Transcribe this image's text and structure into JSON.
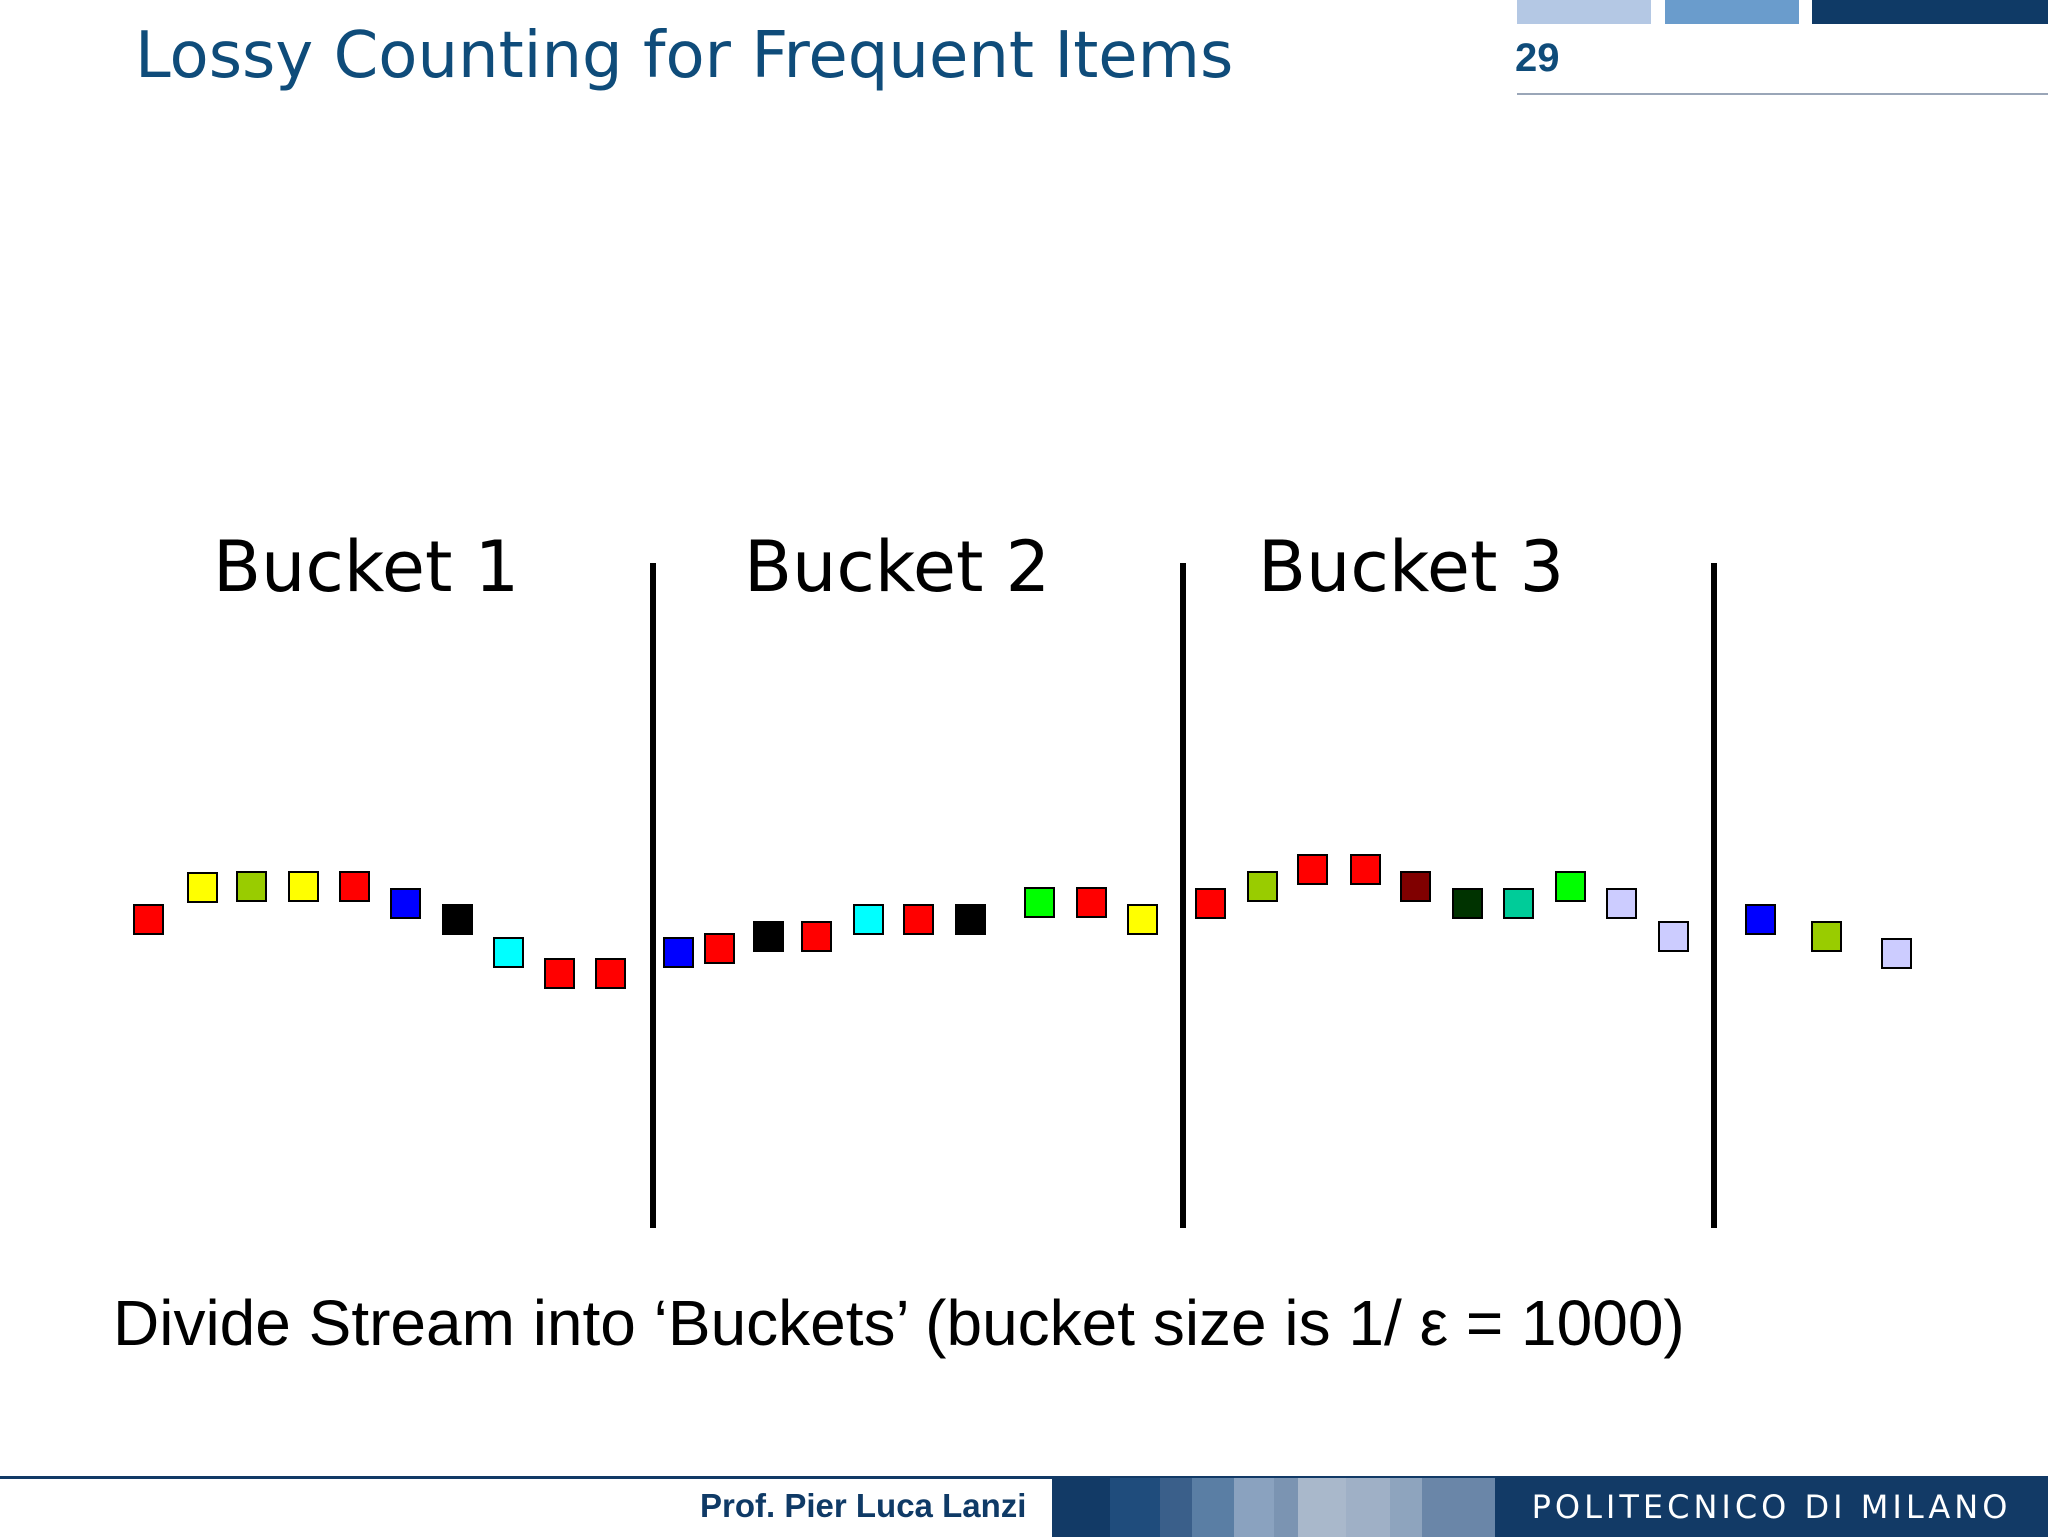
{
  "slide": {
    "title": "Lossy Counting for Frequent Items",
    "page_number": "29",
    "caption": "Divide Stream into ‘Buckets’ (bucket size is 1/ ε = 1000)"
  },
  "buckets": [
    {
      "label": "Bucket 1"
    },
    {
      "label": "Bucket 2"
    },
    {
      "label": "Bucket 3"
    }
  ],
  "stream_item_colors": [
    "#ff0000",
    "#ffff00",
    "#99cc00",
    "#ffff00",
    "#ff0000",
    "#0000ff",
    "#000000",
    "#00ffff",
    "#ff0000",
    "#ff0000",
    "#0000ff",
    "#ff0000",
    "#000000",
    "#ff0000",
    "#00ffff",
    "#ff0000",
    "#000000",
    "#00ff00",
    "#ff0000",
    "#ffff00",
    "#ff0000",
    "#99cc00",
    "#ff0000",
    "#ff0000",
    "#800000",
    "#003300",
    "#00cc99",
    "#00ff00",
    "#ccccff",
    "#ccccff",
    "#0000ff",
    "#99cc00",
    "#ccccff"
  ],
  "footer": {
    "author": "Prof. Pier Luca Lanzi",
    "institution": "POLITECNICO DI MILANO"
  },
  "colors": {
    "title": "#0f4c7a",
    "footer_band": "#123a66"
  }
}
